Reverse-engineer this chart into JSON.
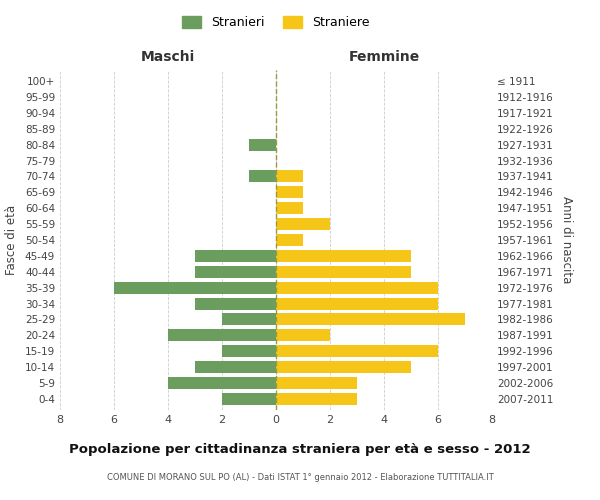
{
  "age_groups": [
    "0-4",
    "5-9",
    "10-14",
    "15-19",
    "20-24",
    "25-29",
    "30-34",
    "35-39",
    "40-44",
    "45-49",
    "50-54",
    "55-59",
    "60-64",
    "65-69",
    "70-74",
    "75-79",
    "80-84",
    "85-89",
    "90-94",
    "95-99",
    "100+"
  ],
  "birth_years": [
    "2007-2011",
    "2002-2006",
    "1997-2001",
    "1992-1996",
    "1987-1991",
    "1982-1986",
    "1977-1981",
    "1972-1976",
    "1967-1971",
    "1962-1966",
    "1957-1961",
    "1952-1956",
    "1947-1951",
    "1942-1946",
    "1937-1941",
    "1932-1936",
    "1927-1931",
    "1922-1926",
    "1917-1921",
    "1912-1916",
    "≤ 1911"
  ],
  "maschi": [
    2,
    4,
    3,
    2,
    4,
    2,
    3,
    6,
    3,
    3,
    0,
    0,
    0,
    0,
    1,
    0,
    1,
    0,
    0,
    0,
    0
  ],
  "femmine": [
    3,
    3,
    5,
    6,
    2,
    7,
    6,
    6,
    5,
    5,
    1,
    2,
    1,
    1,
    1,
    0,
    0,
    0,
    0,
    0,
    0
  ],
  "male_color": "#6B9E5E",
  "female_color": "#F5C518",
  "title": "Popolazione per cittadinanza straniera per età e sesso - 2012",
  "subtitle": "COMUNE DI MORANO SUL PO (AL) - Dati ISTAT 1° gennaio 2012 - Elaborazione TUTTITALIA.IT",
  "xlabel_left": "Maschi",
  "xlabel_right": "Femmine",
  "ylabel_left": "Fasce di età",
  "ylabel_right": "Anni di nascita",
  "legend_male": "Stranieri",
  "legend_female": "Straniere",
  "xlim": 8,
  "background_color": "#ffffff",
  "grid_color": "#cccccc"
}
